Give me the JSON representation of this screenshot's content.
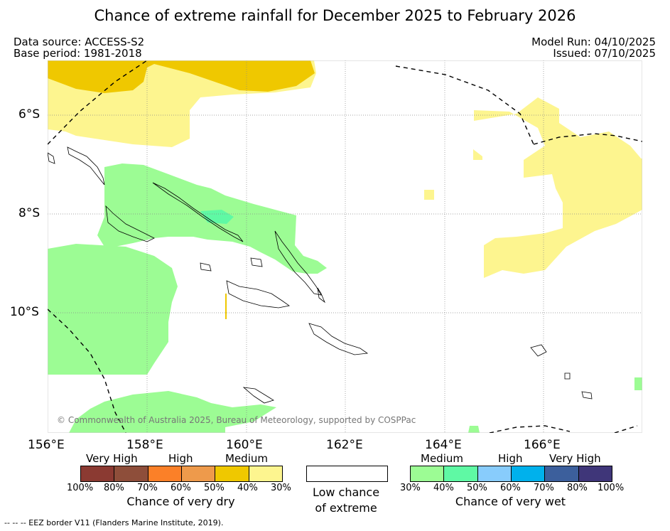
{
  "title": "Chance of extreme rainfall for December 2025 to February 2026",
  "data_source": "Data source: ACCESS-S2",
  "base_period": "Base period: 1981-2018",
  "model_run": "Model Run: 04/10/2025",
  "issued": "Issued: 07/10/2025",
  "map": {
    "lat_labels": [
      "6°S",
      "8°S",
      "10°S"
    ],
    "lon_labels": [
      "156°E",
      "158°E",
      "160°E",
      "162°E",
      "164°E",
      "166°E"
    ],
    "copyright": "© Commonwealth of Australia 2025, Bureau of Meteorology, supported by COSPPac"
  },
  "legend": {
    "dry": {
      "title": "Chance of very dry",
      "categories": [
        "Very High",
        "High",
        "Medium"
      ],
      "ticks": [
        "100%",
        "80%",
        "70%",
        "60%",
        "50%",
        "40%",
        "30%"
      ],
      "colors": [
        "#8b3a32",
        "#8e4e3a",
        "#fb8028",
        "#ee9a4b",
        "#efc800",
        "#fdf58f"
      ]
    },
    "neutral": {
      "label_line1": "Low chance",
      "label_line2": "of extreme"
    },
    "wet": {
      "title": "Chance of very wet",
      "categories": [
        "Medium",
        "High",
        "Very High"
      ],
      "ticks": [
        "30%",
        "40%",
        "50%",
        "60%",
        "70%",
        "80%",
        "100%"
      ],
      "colors": [
        "#9cfc94",
        "#5ff9a4",
        "#88ccfc",
        "#00b1ec",
        "#3c5f9c",
        "#3f3679"
      ]
    }
  },
  "footer": "--  --  -- EEZ border V11 (Flanders Marine Institute, 2019)."
}
